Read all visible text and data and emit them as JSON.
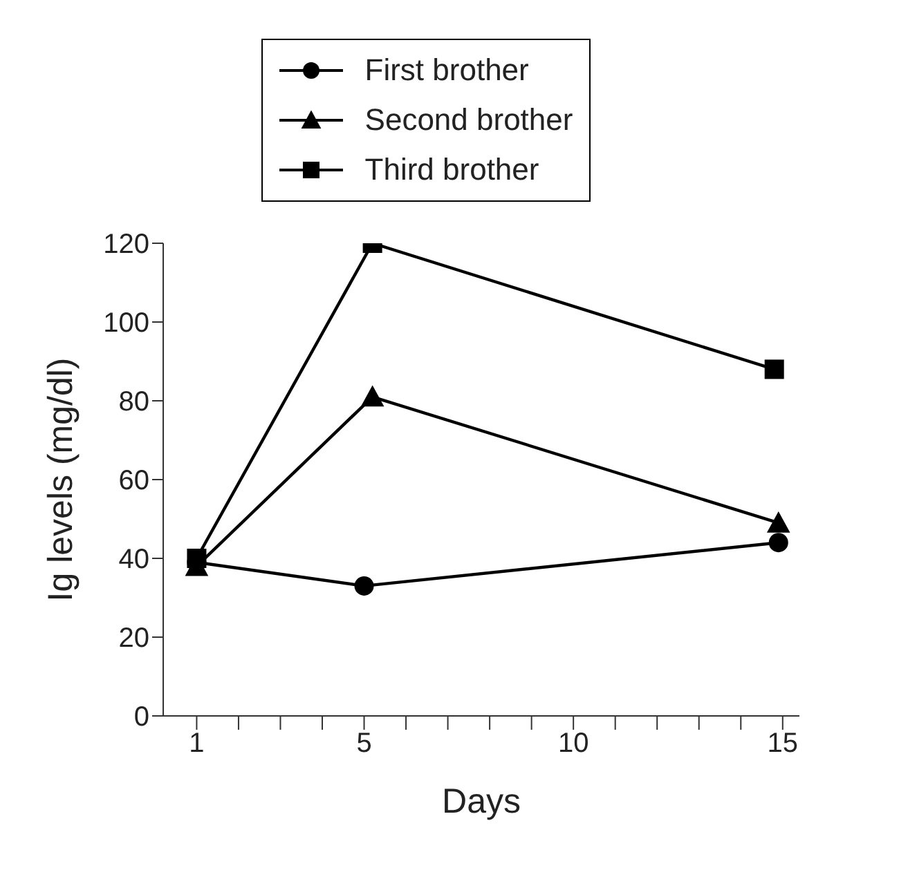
{
  "chart_data": {
    "type": "line",
    "xlabel": "Days",
    "ylabel": "Ig levels (mg/dl)",
    "xlim": [
      0.2,
      15.4
    ],
    "xticks": [
      1,
      {
        "value": 2,
        "label": null
      },
      {
        "value": 3,
        "label": null
      },
      {
        "value": 4,
        "label": null
      },
      5,
      {
        "value": 6,
        "label": null
      },
      {
        "value": 7,
        "label": null
      },
      {
        "value": 8,
        "label": null
      },
      {
        "value": 9,
        "label": null
      },
      10,
      {
        "value": 11,
        "label": null
      },
      {
        "value": 12,
        "label": null
      },
      {
        "value": 13,
        "label": null
      },
      {
        "value": 14,
        "label": null
      },
      15
    ],
    "ylim": [
      0,
      120
    ],
    "yticks": [
      0,
      20,
      40,
      60,
      80,
      100,
      120
    ],
    "grid": false,
    "legend": "top",
    "line_style": "solid",
    "series": [
      {
        "name": "First brother",
        "color": "#000000",
        "marker": "circle",
        "x": [
          1,
          5,
          14.9
        ],
        "values": [
          39,
          33,
          44
        ]
      },
      {
        "name": "Second brother",
        "color": "#000000",
        "marker": "triangle",
        "x": [
          1,
          5.2,
          14.9
        ],
        "values": [
          38,
          81,
          49
        ]
      },
      {
        "name": "Third brother",
        "color": "#000000",
        "marker": "square",
        "x": [
          1,
          5.2,
          14.8
        ],
        "values": [
          40,
          120,
          88
        ]
      }
    ]
  }
}
